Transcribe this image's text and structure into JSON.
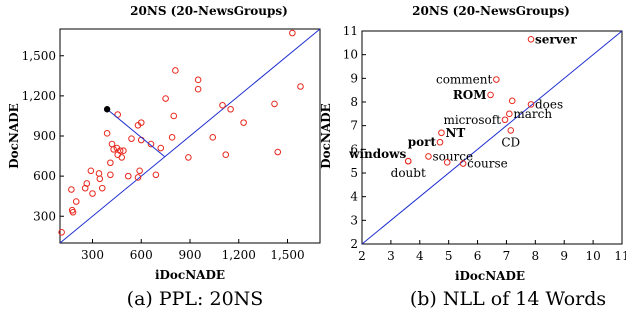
{
  "chart_data": [
    {
      "type": "scatter",
      "caption": "(a) PPL: 20NS",
      "title": "20NS (20-NewsGroups)",
      "xlabel": "iDocNADE",
      "ylabel": "DocNADE",
      "xlim": [
        100,
        1700
      ],
      "ylim": [
        100,
        1700
      ],
      "xticks": [
        300,
        600,
        900,
        1200,
        1500
      ],
      "yticks": [
        300,
        600,
        900,
        1200,
        1500
      ],
      "xtick_labels": [
        "300",
        "600",
        "900",
        "1,200",
        "1,500"
      ],
      "ytick_labels": [
        "300",
        "600",
        "900",
        "1,200",
        "1,500"
      ],
      "diagonal": true,
      "colors": {
        "points": "#e8281e",
        "diagonal": "#1f2fd0",
        "highlight": "#000000"
      },
      "highlight": {
        "x": 390,
        "y": 1100,
        "projection_to_diagonal": true
      },
      "points": [
        {
          "x": 110,
          "y": 180
        },
        {
          "x": 170,
          "y": 500
        },
        {
          "x": 175,
          "y": 345
        },
        {
          "x": 180,
          "y": 330
        },
        {
          "x": 200,
          "y": 410
        },
        {
          "x": 255,
          "y": 510
        },
        {
          "x": 265,
          "y": 545
        },
        {
          "x": 290,
          "y": 640
        },
        {
          "x": 300,
          "y": 470
        },
        {
          "x": 340,
          "y": 620
        },
        {
          "x": 345,
          "y": 580
        },
        {
          "x": 360,
          "y": 510
        },
        {
          "x": 390,
          "y": 920
        },
        {
          "x": 410,
          "y": 610
        },
        {
          "x": 410,
          "y": 700
        },
        {
          "x": 420,
          "y": 840
        },
        {
          "x": 430,
          "y": 800
        },
        {
          "x": 450,
          "y": 810
        },
        {
          "x": 455,
          "y": 1060
        },
        {
          "x": 455,
          "y": 760
        },
        {
          "x": 470,
          "y": 790
        },
        {
          "x": 480,
          "y": 740
        },
        {
          "x": 490,
          "y": 790
        },
        {
          "x": 520,
          "y": 600
        },
        {
          "x": 540,
          "y": 880
        },
        {
          "x": 580,
          "y": 590
        },
        {
          "x": 580,
          "y": 980
        },
        {
          "x": 590,
          "y": 640
        },
        {
          "x": 600,
          "y": 1000
        },
        {
          "x": 600,
          "y": 870
        },
        {
          "x": 660,
          "y": 840
        },
        {
          "x": 690,
          "y": 610
        },
        {
          "x": 720,
          "y": 810
        },
        {
          "x": 750,
          "y": 1180
        },
        {
          "x": 790,
          "y": 890
        },
        {
          "x": 800,
          "y": 1050
        },
        {
          "x": 810,
          "y": 1390
        },
        {
          "x": 890,
          "y": 740
        },
        {
          "x": 950,
          "y": 1320
        },
        {
          "x": 950,
          "y": 1250
        },
        {
          "x": 1040,
          "y": 890
        },
        {
          "x": 1100,
          "y": 1130
        },
        {
          "x": 1120,
          "y": 760
        },
        {
          "x": 1150,
          "y": 1100
        },
        {
          "x": 1230,
          "y": 1000
        },
        {
          "x": 1420,
          "y": 1140
        },
        {
          "x": 1440,
          "y": 780
        },
        {
          "x": 1530,
          "y": 1670
        },
        {
          "x": 1580,
          "y": 1270
        }
      ]
    },
    {
      "type": "scatter",
      "caption": "(b) NLL of 14 Words",
      "title": "20NS (20-NewsGroups)",
      "xlabel": "iDocNADE",
      "ylabel": "DocNADE",
      "xlim": [
        2,
        11
      ],
      "ylim": [
        2,
        11
      ],
      "xticks": [
        2,
        3,
        4,
        5,
        6,
        7,
        8,
        9,
        10,
        11
      ],
      "yticks": [
        2,
        3,
        4,
        5,
        6,
        7,
        8,
        9,
        10,
        11
      ],
      "diagonal": true,
      "colors": {
        "points": "#e8281e",
        "diagonal": "#1f2fd0"
      },
      "points": [
        {
          "x": 7.85,
          "y": 10.65,
          "label": "server",
          "bold": true,
          "label_side": "right"
        },
        {
          "x": 6.65,
          "y": 8.95,
          "label": "comment",
          "bold": false,
          "label_side": "left"
        },
        {
          "x": 6.45,
          "y": 8.3,
          "label": "ROM",
          "bold": true,
          "label_side": "left"
        },
        {
          "x": 7.2,
          "y": 8.05,
          "label": "",
          "bold": false,
          "label_side": "none"
        },
        {
          "x": 7.85,
          "y": 7.9,
          "label": "does",
          "bold": false,
          "label_side": "right"
        },
        {
          "x": 7.1,
          "y": 7.5,
          "label": "march",
          "bold": false,
          "label_side": "right"
        },
        {
          "x": 6.95,
          "y": 7.25,
          "label": "microsoft",
          "bold": false,
          "label_side": "left"
        },
        {
          "x": 4.75,
          "y": 6.7,
          "label": "NT",
          "bold": true,
          "label_side": "right"
        },
        {
          "x": 7.15,
          "y": 6.8,
          "label": "CD",
          "bold": false,
          "label_side": "below"
        },
        {
          "x": 4.7,
          "y": 6.3,
          "label": "port",
          "bold": true,
          "label_side": "left"
        },
        {
          "x": 4.3,
          "y": 5.7,
          "label": "source",
          "bold": false,
          "label_side": "right"
        },
        {
          "x": 3.6,
          "y": 5.5,
          "label": "windows",
          "bold": true,
          "label_side": "above-left"
        },
        {
          "x": 4.95,
          "y": 5.45,
          "label": "",
          "bold": false,
          "label_side": "none"
        },
        {
          "x": 5.5,
          "y": 5.4,
          "label": "course",
          "bold": false,
          "label_side": "right"
        },
        {
          "x": 3.6,
          "y": 5.5,
          "label": "doubt",
          "bold": false,
          "label_side": "below"
        }
      ]
    }
  ]
}
